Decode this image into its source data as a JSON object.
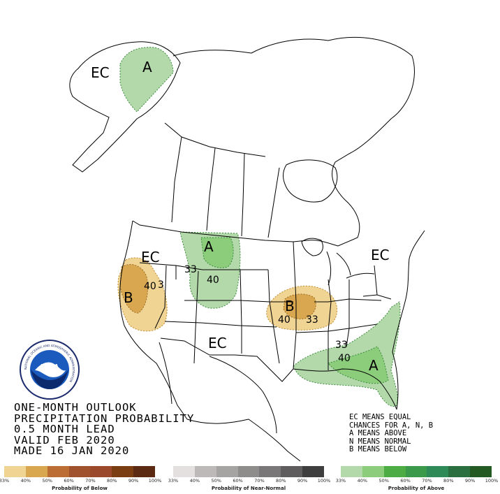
{
  "outlook": {
    "line1": "ONE-MONTH OUTLOOK",
    "line2": "PRECIPITATION PROBABILITY",
    "line3": "0.5 MONTH LEAD",
    "line4": "VALID FEB 2020",
    "line5": "MADE 16 JAN 2020"
  },
  "key": {
    "line1": "EC MEANS EQUAL",
    "line2": "CHANCES FOR A, N, B",
    "line3": "A MEANS ABOVE",
    "line4": "N MEANS NORMAL",
    "line5": "B MEANS BELOW"
  },
  "map_labels": {
    "ec_alaska": "EC",
    "a_alaska": "A",
    "ec_northwest": "EC",
    "a_plains": "A",
    "c33_plains": "33",
    "c40_plains": "40",
    "b_west": "B",
    "c40_west": "40",
    "c3_west": "3",
    "ec_northeast": "EC",
    "b_midwest": "B",
    "c40_midwest": "40",
    "c33_midwest": "33",
    "ec_southwest": "EC",
    "c33_southeast": "33",
    "c40_southeast": "40",
    "a_southeast": "A"
  },
  "legends": {
    "below": {
      "title": "Probability of Below",
      "ticks": [
        "33%",
        "40%",
        "50%",
        "60%",
        "70%",
        "80%",
        "90%",
        "100%"
      ],
      "colors": [
        "#f0d493",
        "#d8a750",
        "#bb6d33",
        "#a0522d",
        "#9a4a2a",
        "#7a3e12",
        "#5c2a12"
      ]
    },
    "near": {
      "title": "Probability of Near-Normal",
      "ticks": [
        "33%",
        "40%",
        "50%",
        "60%",
        "70%",
        "80%",
        "90%",
        "100%"
      ],
      "colors": [
        "#e4e0e0",
        "#bdb9b9",
        "#a6a3a3",
        "#8f8c8c",
        "#797777",
        "#5f5d5d",
        "#3f3e3e"
      ]
    },
    "above": {
      "title": "Probability of Above",
      "ticks": [
        "33%",
        "40%",
        "50%",
        "60%",
        "70%",
        "80%",
        "90%",
        "100%"
      ],
      "colors": [
        "#b3d9ab",
        "#8bcd7a",
        "#4dac43",
        "#3a9a4a",
        "#2e8b57",
        "#2a6f3f",
        "#235a23"
      ]
    }
  },
  "logo": {
    "text": "NOAA",
    "ring_text": "NATIONAL OCEANIC AND ATMOSPHERIC ADMINISTRATION"
  }
}
